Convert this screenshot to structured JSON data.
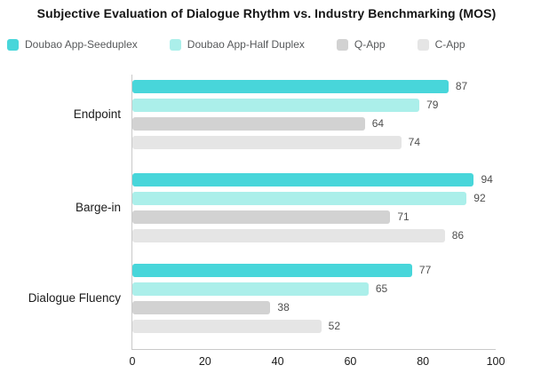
{
  "title": "Subjective Evaluation of Dialogue Rhythm vs. Industry Benchmarking (MOS)",
  "chart_data": {
    "type": "bar",
    "orientation": "horizontal",
    "title": "Subjective Evaluation of Dialogue Rhythm vs. Industry Benchmarking (MOS)",
    "categories": [
      "Endpoint",
      "Barge-in",
      "Dialogue Fluency"
    ],
    "series": [
      {
        "name": "Doubao App-Seeduplex",
        "color": "#48d6da",
        "values": [
          87,
          94,
          77
        ]
      },
      {
        "name": "Doubao App-Half Duplex",
        "color": "#abefea",
        "values": [
          79,
          92,
          65
        ]
      },
      {
        "name": "Q-App",
        "color": "#d2d2d2",
        "values": [
          64,
          71,
          38
        ]
      },
      {
        "name": "C-App",
        "color": "#e5e5e5",
        "values": [
          74,
          86,
          52
        ]
      }
    ],
    "xlabel": "",
    "ylabel": "",
    "xlim": [
      0,
      100
    ],
    "xticks": [
      0,
      20,
      40,
      60,
      80,
      100
    ],
    "grid": false,
    "legend_position": "top",
    "value_labels": true,
    "axis_color": "#c9c9c9",
    "value_label_color": "#4f4f4f"
  }
}
